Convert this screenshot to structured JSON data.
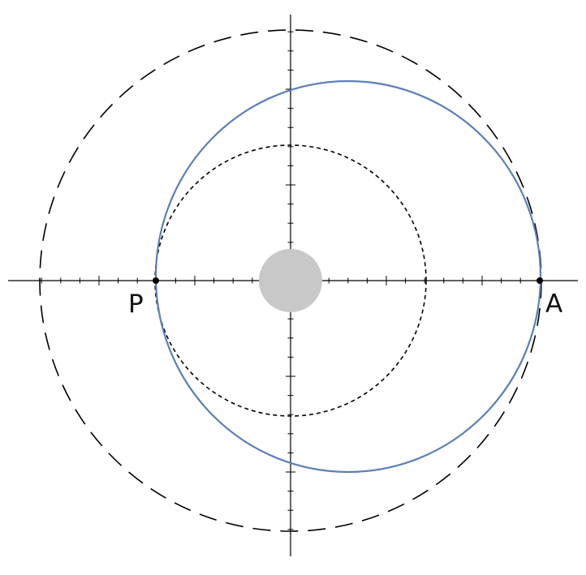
{
  "diagram": {
    "labels": {
      "periapsis": "P",
      "apoapsis": "A"
    },
    "colors": {
      "orbit": "#5b7fb8",
      "planet": "#c8c8c8",
      "axes": "#000000",
      "reference_circles": "#000000"
    }
  }
}
